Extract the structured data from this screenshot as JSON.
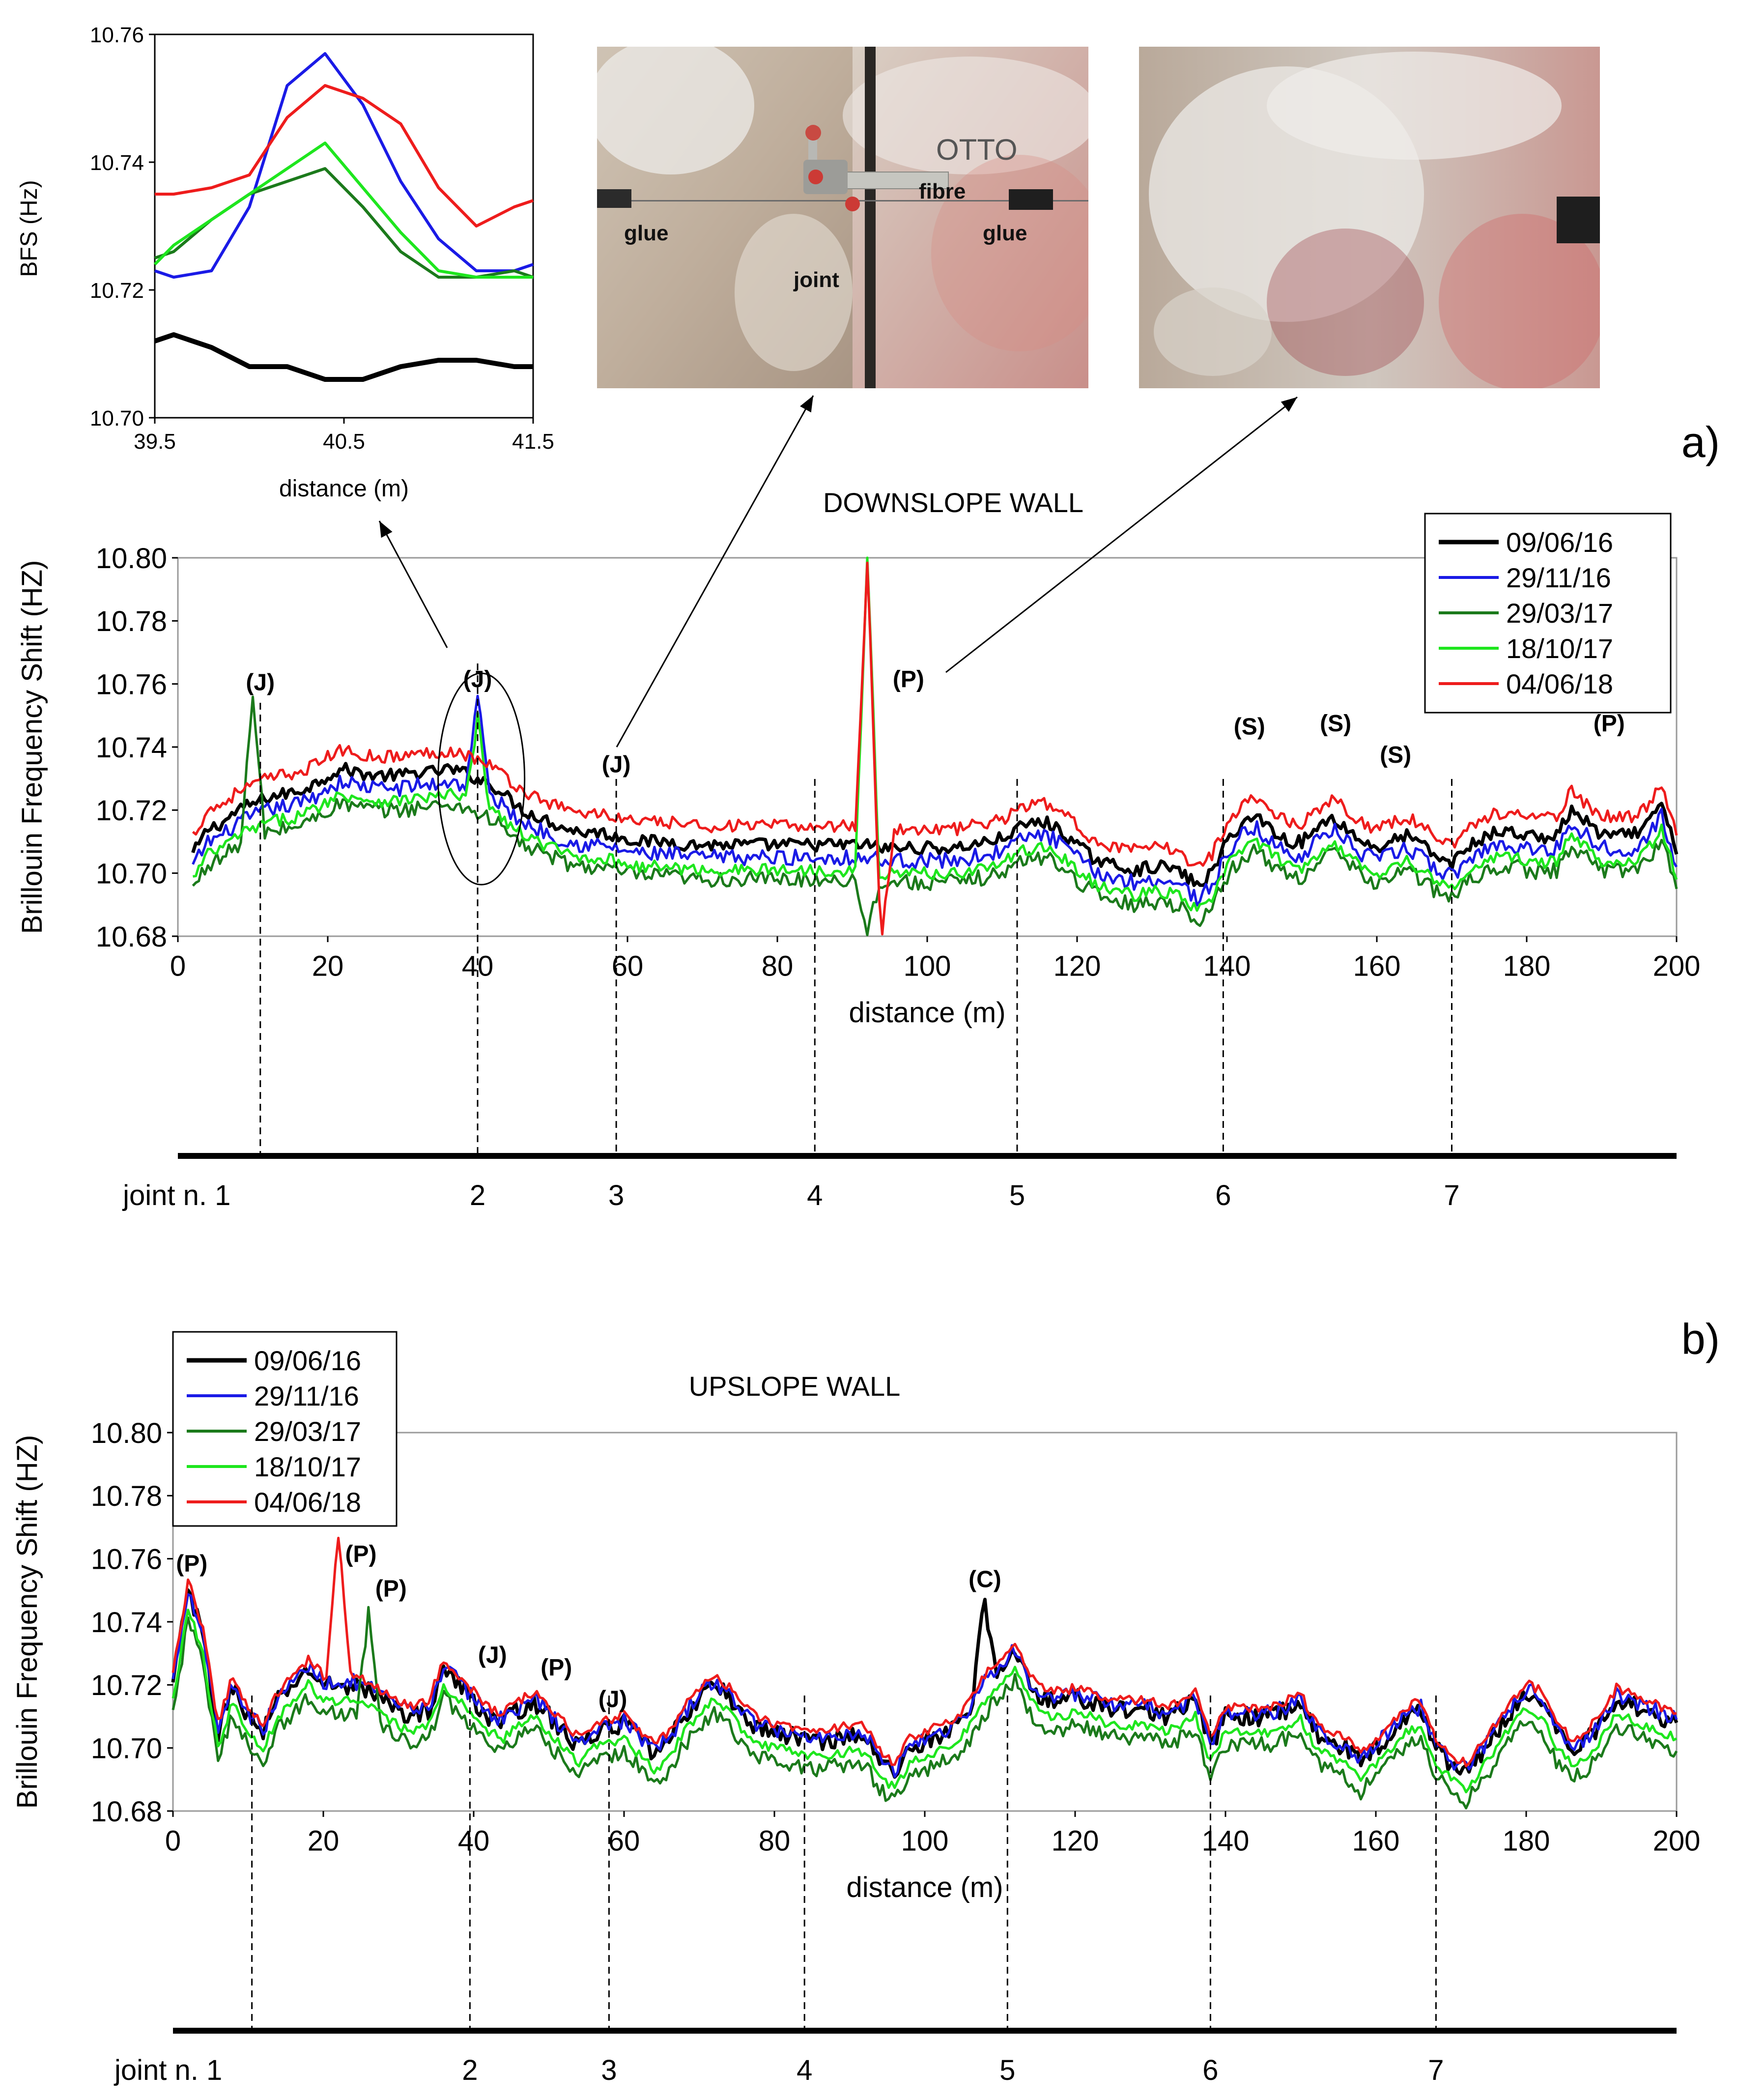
{
  "figure": {
    "panel_a_label": "a)",
    "panel_b_label": "b)"
  },
  "colors": {
    "s1": "#000000",
    "s2": "#1a1ae6",
    "s3": "#1b7a1b",
    "s4": "#1ee61e",
    "s5": "#ee1c1c"
  },
  "photos": {
    "left_labels": {
      "glue_left": "glue",
      "joint": "joint",
      "fibre": "fibre",
      "glue_right": "glue",
      "wall_marking": "OTTO"
    }
  },
  "chart_data": [
    {
      "id": "inset",
      "type": "line",
      "title": "",
      "xlabel": "distance (m)",
      "ylabel": "BFS (Hz)",
      "xlim": [
        39.5,
        41.5
      ],
      "ylim": [
        10.7,
        10.76
      ],
      "xticks": [
        "39.5",
        "40.5",
        "41.5"
      ],
      "yticks": [
        "10.70",
        "10.72",
        "10.74",
        "10.76"
      ],
      "x": [
        39.5,
        39.6,
        39.8,
        40.0,
        40.2,
        40.4,
        40.6,
        40.8,
        41.0,
        41.2,
        41.4,
        41.5
      ],
      "series": [
        {
          "name": "09/06/16",
          "color_key": "s1",
          "values": [
            10.712,
            10.713,
            10.711,
            10.708,
            10.708,
            10.706,
            10.706,
            10.708,
            10.709,
            10.709,
            10.708,
            10.708
          ]
        },
        {
          "name": "29/11/16",
          "color_key": "s2",
          "values": [
            10.723,
            10.722,
            10.723,
            10.733,
            10.752,
            10.757,
            10.749,
            10.737,
            10.728,
            10.723,
            10.723,
            10.724
          ]
        },
        {
          "name": "29/03/17",
          "color_key": "s3",
          "values": [
            10.725,
            10.726,
            10.731,
            10.735,
            10.737,
            10.739,
            10.733,
            10.726,
            10.722,
            10.722,
            10.723,
            10.722
          ]
        },
        {
          "name": "18/10/17",
          "color_key": "s4",
          "values": [
            10.724,
            10.727,
            10.731,
            10.735,
            10.739,
            10.743,
            10.736,
            10.729,
            10.723,
            10.722,
            10.722,
            10.722
          ]
        },
        {
          "name": "04/06/18",
          "color_key": "s5",
          "values": [
            10.735,
            10.735,
            10.736,
            10.738,
            10.747,
            10.752,
            10.75,
            10.746,
            10.736,
            10.73,
            10.733,
            10.734
          ]
        }
      ]
    },
    {
      "id": "downslope",
      "type": "line",
      "title": "DOWNSLOPE WALL",
      "xlabel": "distance (m)",
      "ylabel": "Brillouin Frequency Shift (HZ)",
      "xlim": [
        0,
        200
      ],
      "ylim": [
        10.68,
        10.8
      ],
      "xticks": [
        "0",
        "20",
        "40",
        "60",
        "80",
        "100",
        "120",
        "140",
        "160",
        "180",
        "200"
      ],
      "yticks": [
        "10.68",
        "10.70",
        "10.72",
        "10.74",
        "10.76",
        "10.78",
        "10.80"
      ],
      "x_start": 2,
      "x_step": 2,
      "baseline": [
        10.706,
        10.714,
        10.716,
        10.72,
        10.722,
        10.724,
        10.725,
        10.726,
        10.728,
        10.731,
        10.733,
        10.732,
        10.731,
        10.731,
        10.731,
        10.732,
        10.732,
        10.733,
        10.732,
        10.73,
        10.728,
        10.724,
        10.72,
        10.718,
        10.716,
        10.714,
        10.713,
        10.713,
        10.712,
        10.711,
        10.71,
        10.71,
        10.71,
        10.709,
        10.709,
        10.709,
        10.709,
        10.709,
        10.709,
        10.709,
        10.709,
        10.709,
        10.709,
        10.709,
        10.709,
        10.709,
        10.708,
        10.708,
        10.708,
        10.708,
        10.708,
        10.708,
        10.709,
        10.71,
        10.711,
        10.714,
        10.716,
        10.716,
        10.713,
        10.709,
        10.705,
        10.703,
        10.702,
        10.701,
        10.702,
        10.702,
        10.7,
        10.696,
        10.7,
        10.71,
        10.716,
        10.718,
        10.714,
        10.71,
        10.71,
        10.714,
        10.718,
        10.714,
        10.71,
        10.708,
        10.71,
        10.712,
        10.709,
        10.705,
        10.703,
        10.708,
        10.711,
        10.713,
        10.713,
        10.712,
        10.711,
        10.712,
        10.72,
        10.716,
        10.712,
        10.712,
        10.712,
        10.715,
        10.722,
        10.706
      ],
      "series": [
        {
          "name": "09/06/16",
          "color_key": "s1",
          "offset": 0.0,
          "jitter": 0.002,
          "spikes": []
        },
        {
          "name": "29/11/16",
          "color_key": "s2",
          "offset": -0.004,
          "jitter": 0.0025,
          "spikes": [
            [
              40,
              10.757
            ]
          ]
        },
        {
          "name": "29/03/17",
          "color_key": "s3",
          "offset": -0.011,
          "jitter": 0.0025,
          "spikes": [
            [
              10,
              10.755
            ],
            [
              92,
              10.681
            ]
          ]
        },
        {
          "name": "18/10/17",
          "color_key": "s4",
          "offset": -0.008,
          "jitter": 0.002,
          "spikes": [
            [
              40,
              10.749
            ],
            [
              92,
              10.8
            ]
          ]
        },
        {
          "name": "04/06/18",
          "color_key": "s5",
          "offset": 0.006,
          "jitter": 0.002,
          "spikes": [
            [
              92,
              10.797
            ],
            [
              94,
              10.682
            ]
          ]
        }
      ],
      "annotations": [
        {
          "x": 11,
          "y": 10.758,
          "text": "(J)"
        },
        {
          "x": 40,
          "y": 10.759,
          "text": "(J)"
        },
        {
          "x": 58.5,
          "y": 10.732,
          "text": "(J)"
        },
        {
          "x": 97.5,
          "y": 10.759,
          "text": "(P)"
        },
        {
          "x": 143,
          "y": 10.744,
          "text": "(S)"
        },
        {
          "x": 154.5,
          "y": 10.745,
          "text": "(S)"
        },
        {
          "x": 162.5,
          "y": 10.735,
          "text": "(S)"
        },
        {
          "x": 191,
          "y": 10.745,
          "text": "(P)"
        }
      ],
      "legend": [
        "09/06/16",
        "29/11/16",
        "29/03/17",
        "18/10/17",
        "04/06/18"
      ],
      "legend_position": "top-right",
      "joints": [
        {
          "label": "joint n. 1",
          "x": 11
        },
        {
          "label": "2",
          "x": 40
        },
        {
          "label": "3",
          "x": 58.5
        },
        {
          "label": "4",
          "x": 85
        },
        {
          "label": "5",
          "x": 112
        },
        {
          "label": "6",
          "x": 139.5
        },
        {
          "label": "7",
          "x": 170
        }
      ]
    },
    {
      "id": "upslope",
      "type": "line",
      "title": "UPSLOPE WALL",
      "xlabel": "distance (m)",
      "ylabel": "Brillouin Frequency Shift (HZ)",
      "xlim": [
        0,
        200
      ],
      "ylim": [
        10.68,
        10.8
      ],
      "xticks": [
        "0",
        "20",
        "40",
        "60",
        "80",
        "100",
        "120",
        "140",
        "160",
        "180",
        "200"
      ],
      "yticks": [
        "10.68",
        "10.70",
        "10.72",
        "10.74",
        "10.76",
        "10.78",
        "10.80"
      ],
      "x_start": 0,
      "x_step": 2,
      "baseline": [
        10.72,
        10.75,
        10.735,
        10.705,
        10.72,
        10.71,
        10.705,
        10.715,
        10.72,
        10.725,
        10.72,
        10.72,
        10.72,
        10.718,
        10.715,
        10.712,
        10.71,
        10.712,
        10.725,
        10.72,
        10.715,
        10.71,
        10.708,
        10.712,
        10.715,
        10.71,
        10.705,
        10.7,
        10.705,
        10.706,
        10.708,
        10.703,
        10.698,
        10.702,
        10.71,
        10.716,
        10.72,
        10.716,
        10.71,
        10.706,
        10.705,
        10.704,
        10.703,
        10.702,
        10.703,
        10.704,
        10.704,
        10.696,
        10.692,
        10.7,
        10.702,
        10.704,
        10.706,
        10.712,
        10.72,
        10.726,
        10.73,
        10.72,
        10.715,
        10.715,
        10.716,
        10.715,
        10.713,
        10.712,
        10.712,
        10.712,
        10.71,
        10.712,
        10.715,
        10.7,
        10.71,
        10.71,
        10.71,
        10.71,
        10.712,
        10.714,
        10.705,
        10.702,
        10.7,
        10.695,
        10.7,
        10.705,
        10.71,
        10.712,
        10.7,
        10.695,
        10.692,
        10.698,
        10.705,
        10.712,
        10.718,
        10.715,
        10.705,
        10.7,
        10.702,
        10.708,
        10.716,
        10.714,
        10.712,
        10.71,
        10.708
      ],
      "series": [
        {
          "name": "09/06/16",
          "color_key": "s1",
          "offset": 0.0,
          "jitter": 0.003,
          "spikes": [
            [
              108,
              10.745
            ]
          ]
        },
        {
          "name": "29/11/16",
          "color_key": "s2",
          "offset": 0.001,
          "jitter": 0.0025,
          "spikes": []
        },
        {
          "name": "29/03/17",
          "color_key": "s3",
          "offset": -0.009,
          "jitter": 0.0025,
          "spikes": [
            [
              26,
              10.744
            ]
          ]
        },
        {
          "name": "18/10/17",
          "color_key": "s4",
          "offset": -0.005,
          "jitter": 0.0015,
          "spikes": []
        },
        {
          "name": "04/06/18",
          "color_key": "s5",
          "offset": 0.003,
          "jitter": 0.0015,
          "spikes": [
            [
              22,
              10.768
            ]
          ]
        }
      ],
      "annotations": [
        {
          "x": 2.5,
          "y": 10.756,
          "text": "(P)"
        },
        {
          "x": 25,
          "y": 10.759,
          "text": "(P)"
        },
        {
          "x": 29,
          "y": 10.748,
          "text": "(P)"
        },
        {
          "x": 42.5,
          "y": 10.727,
          "text": "(J)"
        },
        {
          "x": 51,
          "y": 10.723,
          "text": "(P)"
        },
        {
          "x": 58.5,
          "y": 10.713,
          "text": "(J)"
        },
        {
          "x": 108,
          "y": 10.751,
          "text": "(C)"
        }
      ],
      "legend": [
        "09/06/16",
        "29/11/16",
        "29/03/17",
        "18/10/17",
        "04/06/18"
      ],
      "legend_position": "top-left",
      "joints": [
        {
          "label": "joint n. 1",
          "x": 10.5
        },
        {
          "label": "2",
          "x": 39.5
        },
        {
          "label": "3",
          "x": 58
        },
        {
          "label": "4",
          "x": 84
        },
        {
          "label": "5",
          "x": 111
        },
        {
          "label": "6",
          "x": 138
        },
        {
          "label": "7",
          "x": 168
        }
      ]
    }
  ]
}
